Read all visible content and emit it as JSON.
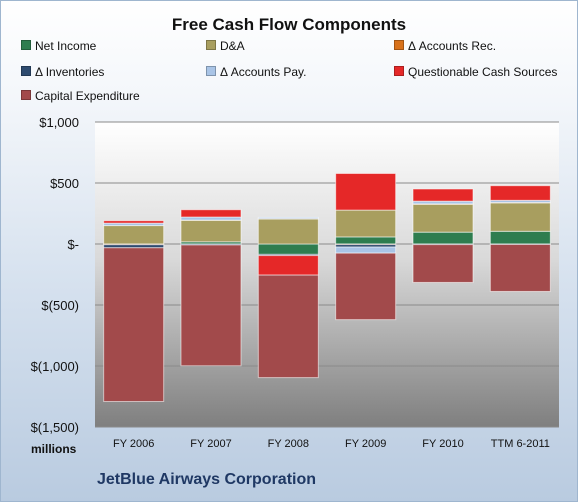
{
  "chart_data": {
    "type": "bar",
    "stacked": true,
    "title": "Free Cash Flow Components",
    "ylabel": "millions",
    "categories": [
      "FY 2006",
      "FY 2007",
      "FY 2008",
      "FY 2009",
      "FY 2010",
      "TTM 6-2011"
    ],
    "ylim": [
      -1500,
      1000
    ],
    "yticks": [
      1000,
      500,
      0,
      -500,
      -1000,
      -1500
    ],
    "yticklabels": [
      "$1,000",
      "$500",
      "$-",
      "$(500)",
      "$(1,000)",
      "$(1,500)"
    ],
    "grid": true,
    "legend_position": "top",
    "series": [
      {
        "name": "Net Income",
        "color": "#2e7d4f",
        "values": [
          -1,
          18,
          -85,
          58,
          97,
          104
        ]
      },
      {
        "name": "D&A",
        "color": "#a89e5f",
        "values": [
          151,
          176,
          205,
          220,
          228,
          233
        ]
      },
      {
        "name": "Δ Accounts Rec.",
        "color": "#d8711a",
        "values": [
          -5,
          2,
          3,
          -5,
          4,
          3
        ]
      },
      {
        "name": "Δ Inventories",
        "color": "#2e4b6f",
        "values": [
          -25,
          -8,
          -10,
          -20,
          -5,
          -4
        ]
      },
      {
        "name": "Δ Accounts Pay.",
        "color": "#a9c4e6",
        "values": [
          20,
          25,
          10,
          -50,
          22,
          18
        ]
      },
      {
        "name": "Questionable Cash Sources",
        "color": "#e52828",
        "values": [
          20,
          60,
          -160,
          300,
          100,
          120
        ]
      },
      {
        "name": "Capital Expenditure",
        "color": "#a24a4b",
        "values": [
          -1260,
          -990,
          -840,
          -545,
          -310,
          -385
        ]
      }
    ]
  },
  "footer": {
    "company": "JetBlue Airways Corporation"
  }
}
